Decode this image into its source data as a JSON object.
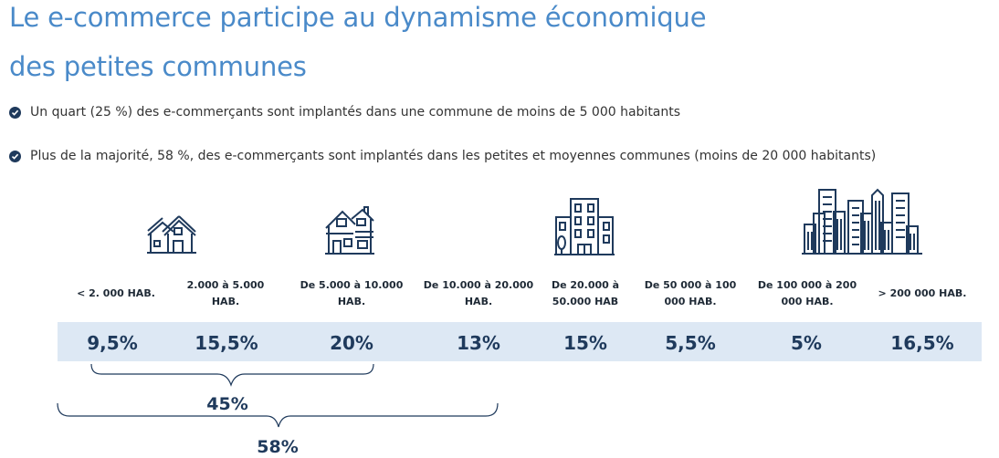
{
  "title": {
    "line1": "Le e-commerce participe au dynamisme économique",
    "line2": "des petites communes"
  },
  "bullets": [
    "Un quart (25 %) des e-commerçants sont implantés dans une commune de moins de 5 000 habitants",
    "Plus de la majorité, 58 %, des e-commerçants sont implantés dans les petites et moyennes communes (moins de 20 000 habitants)"
  ],
  "colors": {
    "title": "#4a8ac9",
    "values": "#1f3a5c",
    "band": "#dde8f4",
    "icons": "#1f3a5c"
  },
  "icons": [
    "houses-icon",
    "house-icon",
    "apartment-building-icon",
    "city-skyline-icon"
  ],
  "chart_data": {
    "type": "table",
    "categories": [
      "< 2. 000 HAB.",
      "2.000 à 5.000 HAB.",
      "De 5.000 à 10.000 HAB.",
      "De 10.000 à 20.000 HAB.",
      "De 20.000 à 50.000 HAB",
      "De 50 000 à 100 000 HAB.",
      "De 100 000 à 200 000 HAB.",
      "> 200 000 HAB."
    ],
    "values": [
      9.5,
      15.5,
      20,
      13,
      15,
      5.5,
      5,
      16.5
    ],
    "value_labels": [
      "9,5%",
      "15,5%",
      "20%",
      "13%",
      "15%",
      "5,5%",
      "5%",
      "16,5%"
    ],
    "unit": "%",
    "groups": [
      {
        "label": "45%",
        "value": 45,
        "categories": [
          0,
          2
        ]
      },
      {
        "label": "58%",
        "value": 58,
        "categories": [
          0,
          3
        ]
      }
    ]
  }
}
